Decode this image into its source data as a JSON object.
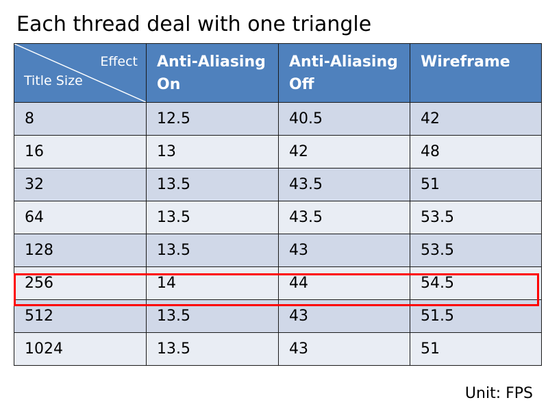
{
  "slide": {
    "title": "Each thread deal with one triangle",
    "unit_note": "Unit: FPS"
  },
  "table": {
    "corner": {
      "top_right_label": "Effect",
      "bottom_left_label": "Title Size"
    },
    "columns": [
      "Anti-Aliasing On",
      "Anti-Aliasing Off",
      "Wireframe"
    ],
    "rows": [
      [
        "8",
        "12.5",
        "40.5",
        "42"
      ],
      [
        "16",
        "13",
        "42",
        "48"
      ],
      [
        "32",
        "13.5",
        "43.5",
        "51"
      ],
      [
        "64",
        "13.5",
        "43.5",
        "53.5"
      ],
      [
        "128",
        "13.5",
        "43",
        "53.5"
      ],
      [
        "256",
        "14",
        "44",
        "54.5"
      ],
      [
        "512",
        "13.5",
        "43",
        "51.5"
      ],
      [
        "1024",
        "13.5",
        "43",
        "51"
      ]
    ],
    "highlighted_row_label": "256",
    "colors": {
      "header": "#4f81bd",
      "row_dark": "#d0d8e8",
      "row_light": "#e9edf4",
      "highlight": "#ff0000"
    }
  }
}
